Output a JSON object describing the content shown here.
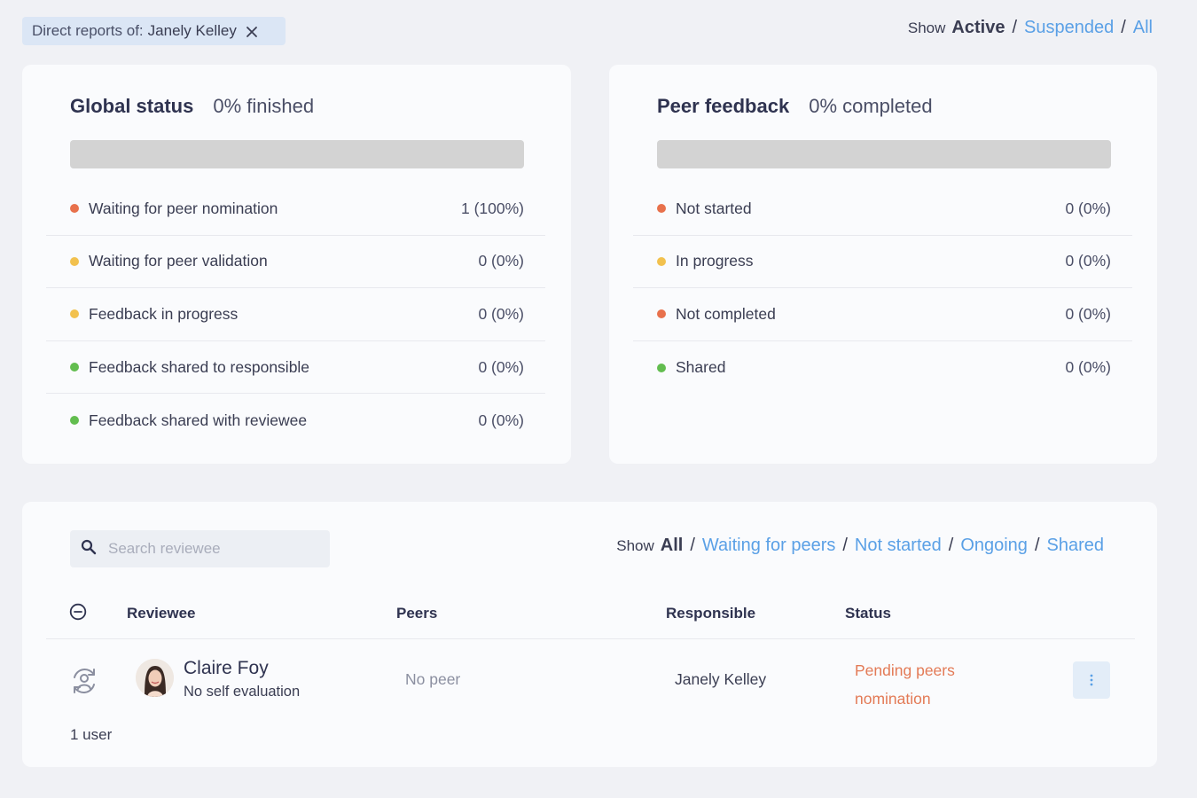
{
  "filter": {
    "prefix": "Direct reports of:",
    "name": "Janely Kelley"
  },
  "top_show": {
    "label": "Show",
    "active": "Active",
    "options": [
      "Suspended",
      "All"
    ]
  },
  "global_status": {
    "title": "Global status",
    "percent_text": "0% finished",
    "progress_fraction": 0,
    "items": [
      {
        "label": "Waiting for peer nomination",
        "value": "1 (100%)",
        "color": "#e8714c"
      },
      {
        "label": "Waiting for peer validation",
        "value": "0 (0%)",
        "color": "#f2c14e"
      },
      {
        "label": "Feedback in progress",
        "value": "0 (0%)",
        "color": "#f2c14e"
      },
      {
        "label": "Feedback shared to responsible",
        "value": "0 (0%)",
        "color": "#62bd4f"
      },
      {
        "label": "Feedback shared with reviewee",
        "value": "0 (0%)",
        "color": "#62bd4f"
      }
    ]
  },
  "peer_feedback": {
    "title": "Peer feedback",
    "percent_text": "0% completed",
    "progress_fraction": 0,
    "items": [
      {
        "label": "Not started",
        "value": "0 (0%)",
        "color": "#e8714c"
      },
      {
        "label": "In progress",
        "value": "0 (0%)",
        "color": "#f2c14e"
      },
      {
        "label": "Not completed",
        "value": "0 (0%)",
        "color": "#e8714c"
      },
      {
        "label": "Shared",
        "value": "0 (0%)",
        "color": "#62bd4f"
      }
    ]
  },
  "table": {
    "search_placeholder": "Search reviewee",
    "show": {
      "label": "Show",
      "active": "All",
      "options": [
        "Waiting for peers",
        "Not started",
        "Ongoing",
        "Shared"
      ]
    },
    "columns": {
      "reviewee": "Reviewee",
      "peers": "Peers",
      "responsible": "Responsible",
      "status": "Status"
    },
    "rows": [
      {
        "name": "Claire Foy",
        "subtitle": "No self evaluation",
        "peers": "No peer",
        "responsible": "Janely Kelley",
        "status": "Pending peers nomination"
      }
    ],
    "user_count": "1 user"
  },
  "colors": {
    "link": "#5aa0e6",
    "status_pending": "#e37a56"
  }
}
